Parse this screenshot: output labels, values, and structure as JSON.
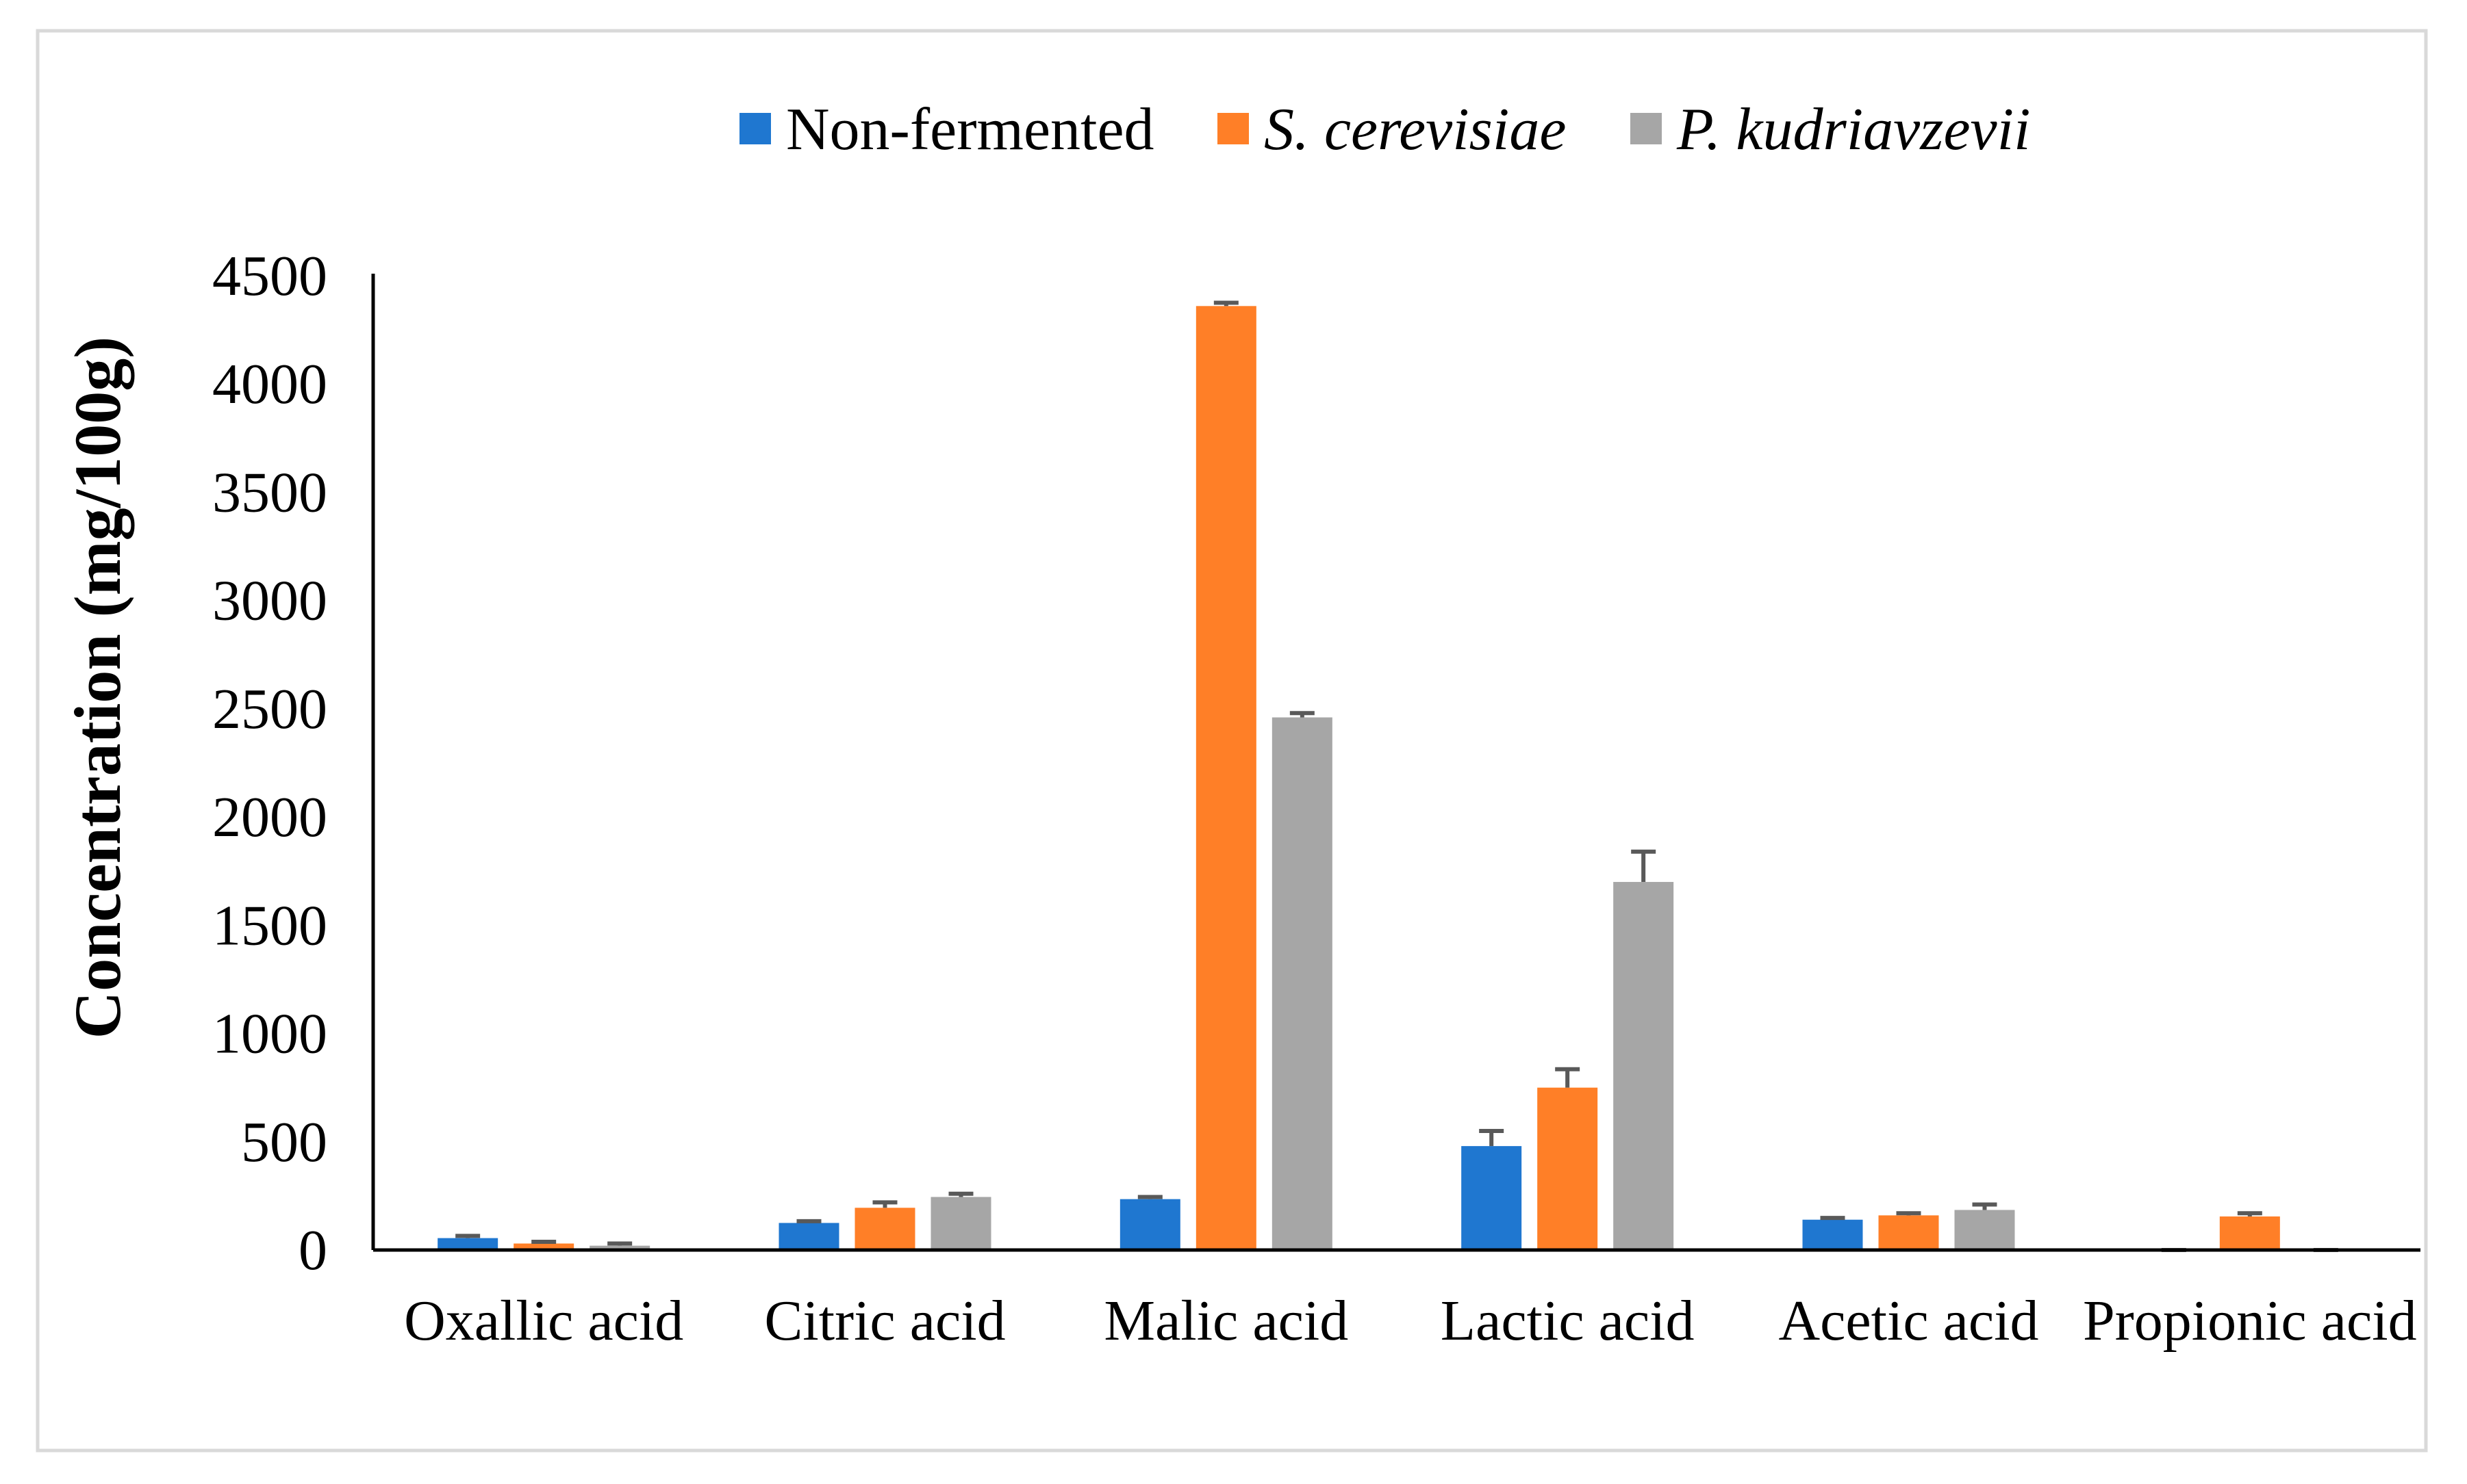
{
  "chart_data": {
    "type": "bar",
    "title": "",
    "xlabel": "",
    "ylabel": "Concentration (mg/100g)",
    "ylim": [
      0,
      4500
    ],
    "yticks": [
      0,
      500,
      1000,
      1500,
      2000,
      2500,
      3000,
      3500,
      4000,
      4500
    ],
    "categories": [
      "Oxallic acid",
      "Citric acid",
      "Malic acid",
      "Lactic acid",
      "Acetic acid",
      "Propionic acid"
    ],
    "legend_position": "top-center",
    "grid": false,
    "series": [
      {
        "name": "Non-fermented",
        "italic": false,
        "color": "#1F77D0",
        "values": [
          55,
          125,
          235,
          480,
          140,
          0
        ],
        "errors": [
          10,
          8,
          10,
          70,
          8,
          0
        ]
      },
      {
        "name": "S. cerevisiae",
        "italic": true,
        "color": "#FF7F27",
        "values": [
          30,
          195,
          4360,
          750,
          160,
          155
        ],
        "errors": [
          8,
          25,
          15,
          85,
          10,
          15
        ]
      },
      {
        "name": "P. kudriavzevii",
        "italic": true,
        "color": "#A6A6A6",
        "values": [
          20,
          245,
          2460,
          1700,
          185,
          0
        ],
        "errors": [
          10,
          15,
          20,
          140,
          25,
          0
        ]
      }
    ]
  }
}
